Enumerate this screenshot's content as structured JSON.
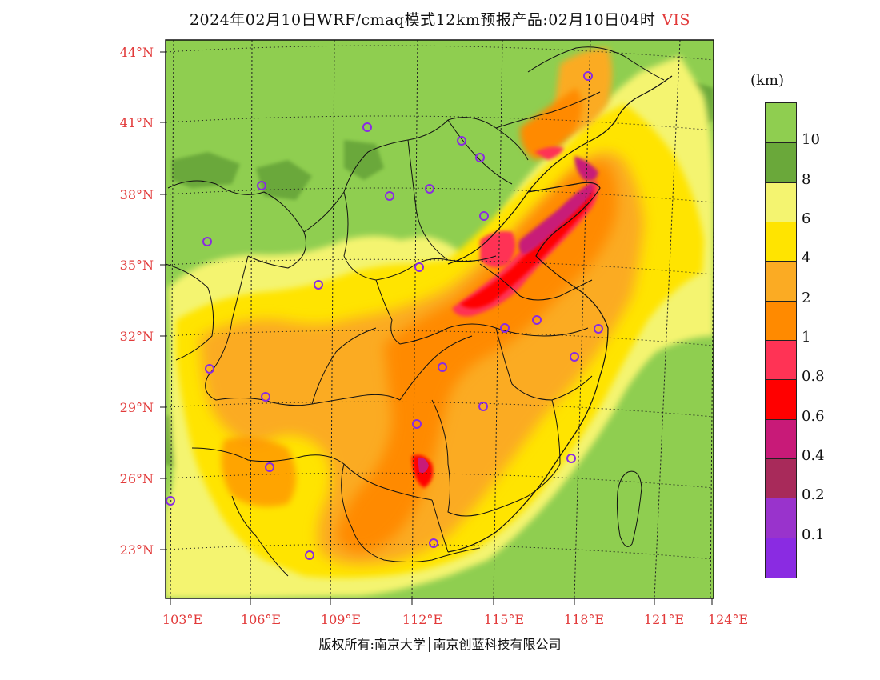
{
  "title": {
    "main": "2024年02月10日WRF/cmaq模式12km预报产品:02月10日04时",
    "variable": "VIS"
  },
  "axes": {
    "lat_labels": [
      "44°N",
      "41°N",
      "38°N",
      "35°N",
      "32°N",
      "29°N",
      "26°N",
      "23°N"
    ],
    "lon_labels": [
      "103°E",
      "106°E",
      "109°E",
      "112°E",
      "115°E",
      "118°E",
      "121°E",
      "124°E"
    ]
  },
  "legend": {
    "unit": "(km)",
    "labels": [
      "10",
      "8",
      "6",
      "4",
      "2",
      "1",
      "0.8",
      "0.6",
      "0.4",
      "0.2",
      "0.1"
    ],
    "colors": [
      "#8fce50",
      "#6aa83a",
      "#f4f470",
      "#ffe400",
      "#fbab23",
      "#ff8a00",
      "#ff3355",
      "#ff0000",
      "#c81a78",
      "#a82a5a",
      "#9933cc",
      "#8a2be2"
    ]
  },
  "colors": {
    "accent": "#e23a3a",
    "station": "#8a2be2"
  },
  "footer": {
    "copyright": "版权所有:南京大学│南京创蓝科技有限公司"
  }
}
